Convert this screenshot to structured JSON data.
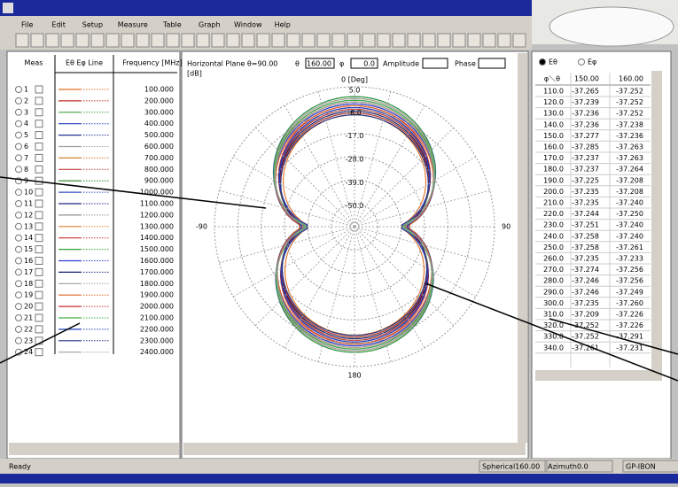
{
  "menu": [
    "File",
    "Edit",
    "Setup",
    "Measure",
    "Table",
    "Graph",
    "Window",
    "Help"
  ],
  "left": {
    "headers": [
      "Meas",
      "Eθ Eφ Line",
      "Frequency [MHz]"
    ],
    "rows": [
      {
        "meas": "1",
        "color": "#e07020",
        "freq": "100.000"
      },
      {
        "meas": "2",
        "color": "#c03020",
        "freq": "200.000"
      },
      {
        "meas": "3",
        "color": "#40a040",
        "freq": "300.000"
      },
      {
        "meas": "4",
        "color": "#2040c0",
        "freq": "400.000"
      },
      {
        "meas": "5",
        "color": "#203090",
        "freq": "500.000"
      },
      {
        "meas": "6",
        "color": "#a0a0a0",
        "freq": "600.000"
      },
      {
        "meas": "7",
        "color": "#d08030",
        "freq": "700.000"
      },
      {
        "meas": "8",
        "color": "#c04040",
        "freq": "800.000"
      },
      {
        "meas": "9",
        "color": "#208020",
        "freq": "900.000"
      },
      {
        "meas": "10",
        "color": "#3050c0",
        "freq": "1000.000"
      },
      {
        "meas": "11",
        "color": "#202080",
        "freq": "1100.000"
      },
      {
        "meas": "12",
        "color": "#909090",
        "freq": "1200.000"
      },
      {
        "meas": "13",
        "color": "#e08030",
        "freq": "1300.000"
      },
      {
        "meas": "14",
        "color": "#d03030",
        "freq": "1400.000"
      },
      {
        "meas": "15",
        "color": "#30a030",
        "freq": "1500.000"
      },
      {
        "meas": "16",
        "color": "#3040d0",
        "freq": "1600.000"
      },
      {
        "meas": "17",
        "color": "#102070",
        "freq": "1700.000"
      },
      {
        "meas": "18",
        "color": "#a0a0a0",
        "freq": "1800.000"
      },
      {
        "meas": "19",
        "color": "#e06020",
        "freq": "1900.000"
      },
      {
        "meas": "20",
        "color": "#c03030",
        "freq": "2000.000"
      },
      {
        "meas": "21",
        "color": "#40b040",
        "freq": "2100.000"
      },
      {
        "meas": "22",
        "color": "#2040c0",
        "freq": "2200.000"
      },
      {
        "meas": "23",
        "color": "#203080",
        "freq": "2300.000"
      },
      {
        "meas": "24",
        "color": "#a0a0a0",
        "freq": "2400.000"
      }
    ]
  },
  "plot": {
    "plane": "Horizontal Plane θ=90.00",
    "theta_label": "θ",
    "theta": "160.00",
    "phi_label": "φ",
    "phi": "0.0",
    "amplitude": "Amplitude",
    "phase": "Phase",
    "unit": "[dB]",
    "angles": [
      "0 [Deg]",
      "90",
      "180",
      "-90"
    ],
    "rings": [
      "5.0",
      "-6.0",
      "-17.0",
      "-28.0",
      "-39.0",
      "-50.0"
    ]
  },
  "right": {
    "radio": [
      "Eθ",
      "Eφ"
    ],
    "headers": [
      "φ＼θ",
      "150.00",
      "160.00"
    ],
    "rows": [
      [
        "110.0",
        "-37.265",
        "-37.252"
      ],
      [
        "120.0",
        "-37.239",
        "-37.252"
      ],
      [
        "130.0",
        "-37.236",
        "-37.252"
      ],
      [
        "140.0",
        "-37.236",
        "-37.238"
      ],
      [
        "150.0",
        "-37.277",
        "-37.236"
      ],
      [
        "160.0",
        "-37.285",
        "-37.263"
      ],
      [
        "170.0",
        "-37.237",
        "-37.263"
      ],
      [
        "180.0",
        "-37.237",
        "-37.264"
      ],
      [
        "190.0",
        "-37.225",
        "-37.208"
      ],
      [
        "200.0",
        "-37.235",
        "-37.208"
      ],
      [
        "210.0",
        "-37.235",
        "-37.240"
      ],
      [
        "220.0",
        "-37.244",
        "-37.250"
      ],
      [
        "230.0",
        "-37.251",
        "-37.240"
      ],
      [
        "240.0",
        "-37.258",
        "-37.240"
      ],
      [
        "250.0",
        "-37.258",
        "-37.261"
      ],
      [
        "260.0",
        "-37.235",
        "-37.233"
      ],
      [
        "270.0",
        "-37.274",
        "-37.256"
      ],
      [
        "280.0",
        "-37.246",
        "-37.256"
      ],
      [
        "290.0",
        "-37.246",
        "-37.249"
      ],
      [
        "300.0",
        "-37.235",
        "-37.260"
      ],
      [
        "310.0",
        "-37.209",
        "-37.226"
      ],
      [
        "320.0",
        "-37.252",
        "-37.226"
      ],
      [
        "330.0",
        "-37.252",
        "-37.291"
      ],
      [
        "340.0",
        "-37.261",
        "-37.231"
      ]
    ]
  },
  "status": [
    "Ready",
    "Spherical160.00",
    "Azimuth0.0",
    "GP-IBON"
  ]
}
